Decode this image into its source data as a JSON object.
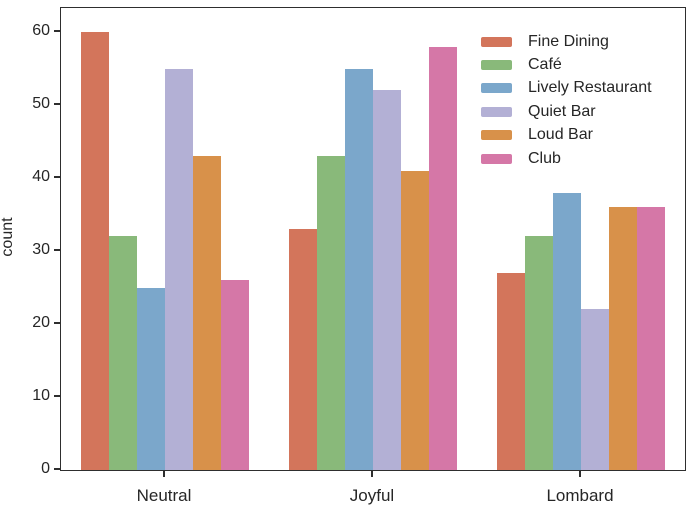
{
  "chart_data": {
    "type": "bar",
    "title": "",
    "xlabel": "",
    "ylabel": "count",
    "categories": [
      "Neutral",
      "Joyful",
      "Lombard"
    ],
    "series": [
      {
        "name": "Fine Dining",
        "color": "#d3755b",
        "values": [
          60,
          33,
          27
        ]
      },
      {
        "name": "Café",
        "color": "#89b97a",
        "values": [
          32,
          43,
          32
        ]
      },
      {
        "name": "Lively Restaurant",
        "color": "#7ba7cb",
        "values": [
          25,
          55,
          38
        ]
      },
      {
        "name": "Quiet Bar",
        "color": "#b3b0d5",
        "values": [
          55,
          52,
          22
        ]
      },
      {
        "name": "Loud Bar",
        "color": "#d8914a",
        "values": [
          43,
          41,
          36
        ]
      },
      {
        "name": "Club",
        "color": "#d577a7",
        "values": [
          26,
          58,
          36
        ]
      }
    ],
    "ylim": [
      0,
      63.3
    ],
    "yticks": [
      0,
      10,
      20,
      30,
      40,
      50,
      60
    ],
    "grid": false,
    "legend_position": "upper-right"
  },
  "style_colors": {
    "spine": "#2e2e2e",
    "text": "#262626",
    "background": "#ffffff"
  }
}
